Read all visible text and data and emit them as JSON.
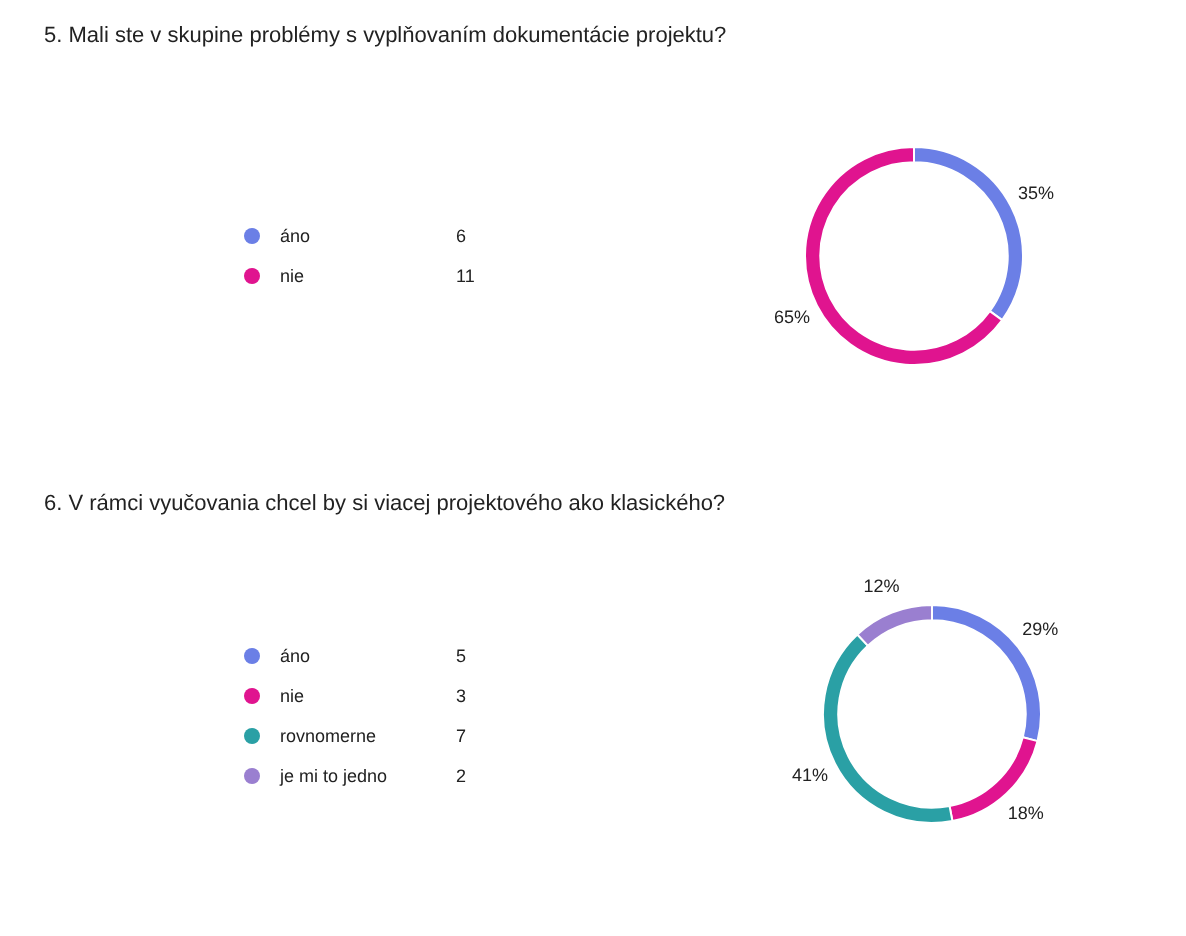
{
  "chart_data": [
    {
      "type": "donut",
      "title": "5. Mali ste v skupine problémy s vyplňovaním dokumentácie projektu?",
      "categories": [
        "áno",
        "nie"
      ],
      "values": [
        35,
        65
      ],
      "colors": [
        "#6b7fe6",
        "#e0148f"
      ],
      "value_labels": [
        "35%",
        "65%"
      ],
      "legend": "left",
      "annotations": [
        {
          "text": "6",
          "x": "áno"
        },
        {
          "text": "11",
          "x": "nie"
        }
      ]
    },
    {
      "type": "donut",
      "title": "6. V rámci vyučovania chcel by si viacej projektového ako klasického?",
      "categories": [
        "áno",
        "nie",
        "rovnomerne",
        "je mi to jedno"
      ],
      "values": [
        29,
        18,
        41,
        12
      ],
      "colors": [
        "#6b7fe6",
        "#e0148f",
        "#2aa0a5",
        "#9a7fd0"
      ],
      "value_labels": [
        "29%",
        "18%",
        "41%",
        "12%"
      ],
      "legend": "left",
      "annotations": [
        {
          "text": "5",
          "x": "áno"
        },
        {
          "text": "3",
          "x": "nie"
        },
        {
          "text": "7",
          "x": "rovnomerne"
        },
        {
          "text": "2",
          "x": "je mi to jedno"
        }
      ]
    }
  ]
}
